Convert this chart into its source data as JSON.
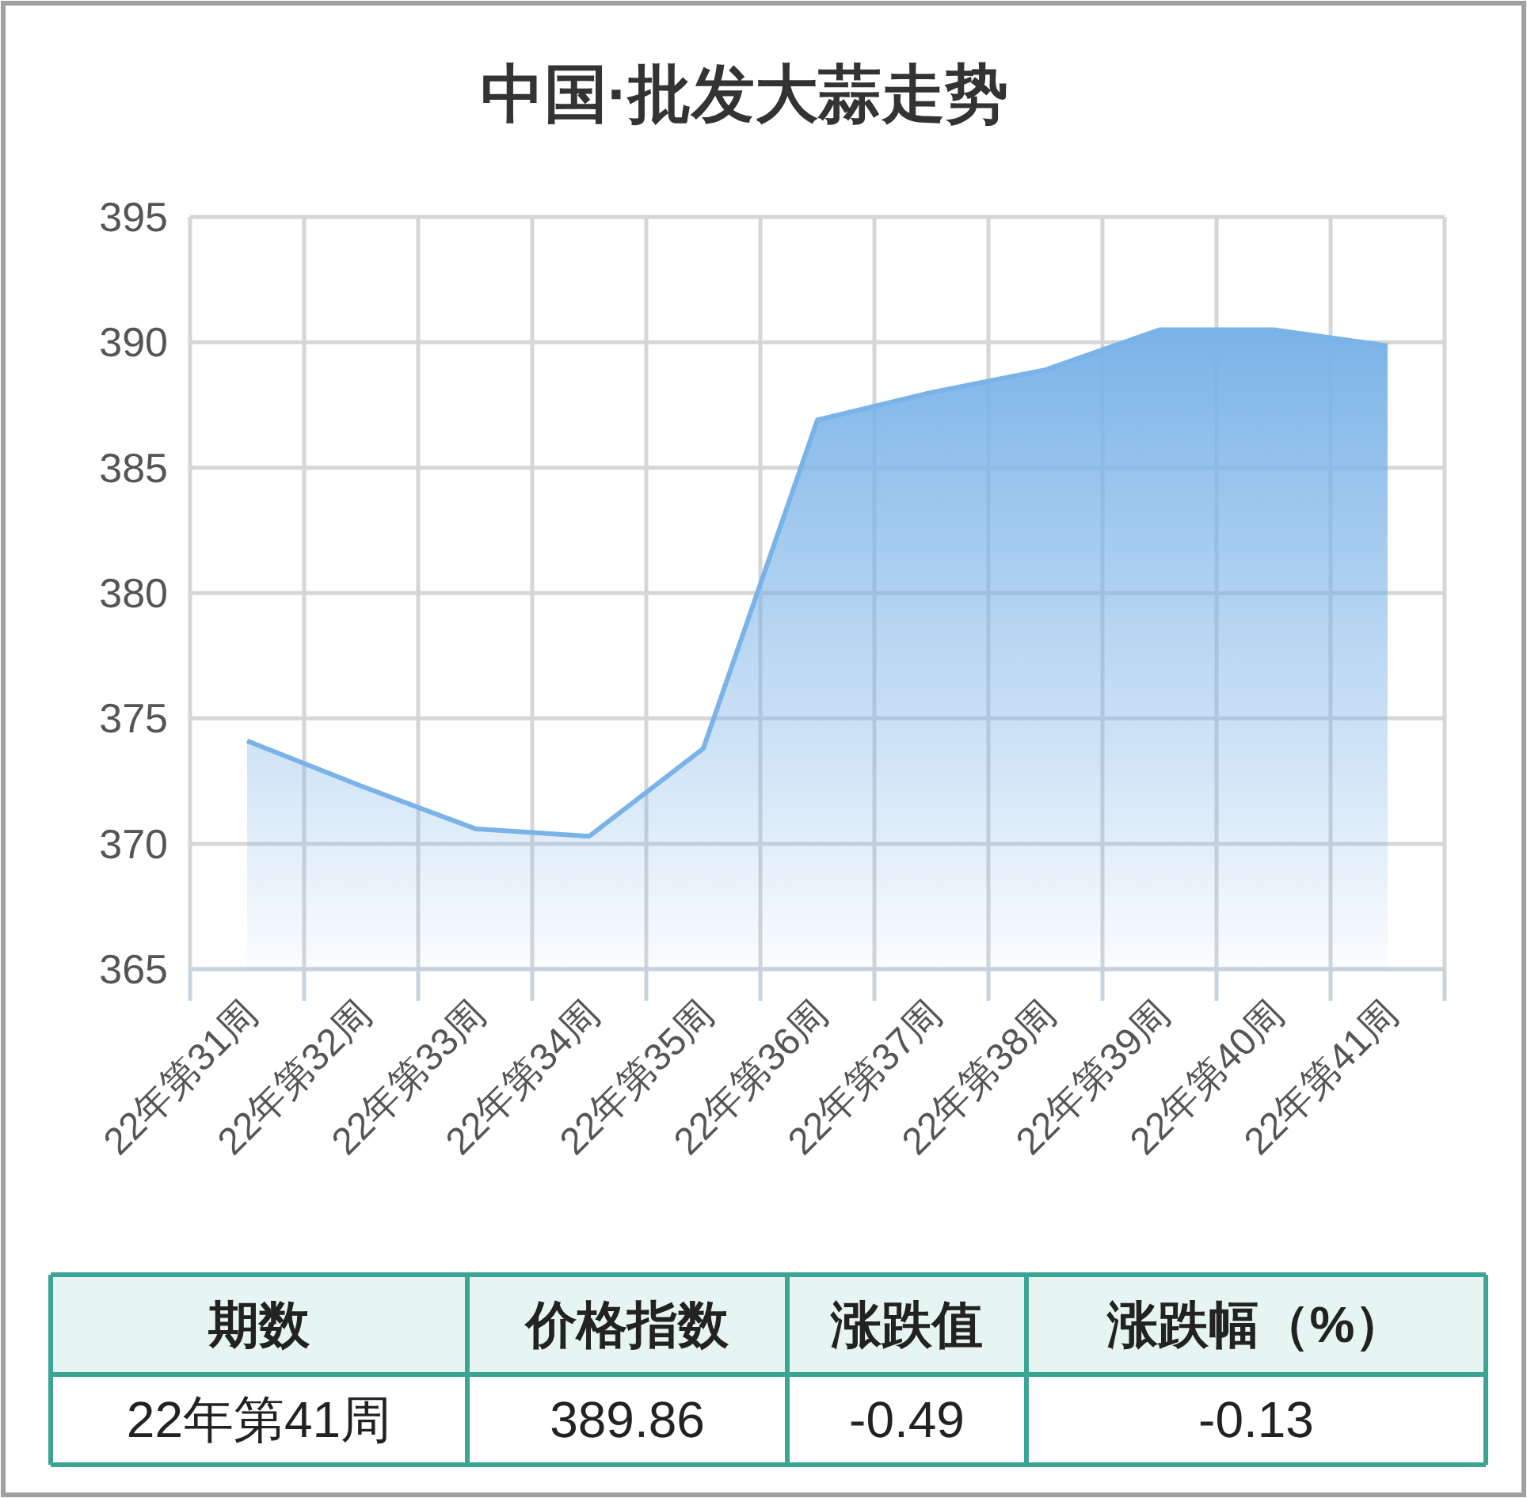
{
  "chart_data": {
    "type": "area",
    "title": "中国·批发大蒜走势",
    "categories": [
      "22年第31周",
      "22年第32周",
      "22年第33周",
      "22年第34周",
      "22年第35周",
      "22年第36周",
      "22年第37周",
      "22年第38周",
      "22年第39周",
      "22年第40周",
      "22年第41周"
    ],
    "series": [
      {
        "color": "#7ab3e8",
        "values": [
          374.1,
          372.3,
          370.6,
          370.3,
          373.8,
          386.9,
          388.0,
          388.9,
          390.5,
          390.5,
          389.86
        ]
      }
    ],
    "ylim": [
      365,
      395
    ],
    "yticks": [
      365,
      370,
      375,
      380,
      385,
      390,
      395
    ],
    "grid": true,
    "annotations": [
      "期数",
      "价格指数",
      "涨跌值",
      "涨跌幅（%）",
      "22年第41周",
      "389.86",
      "-0.49",
      "-0.13"
    ]
  }
}
